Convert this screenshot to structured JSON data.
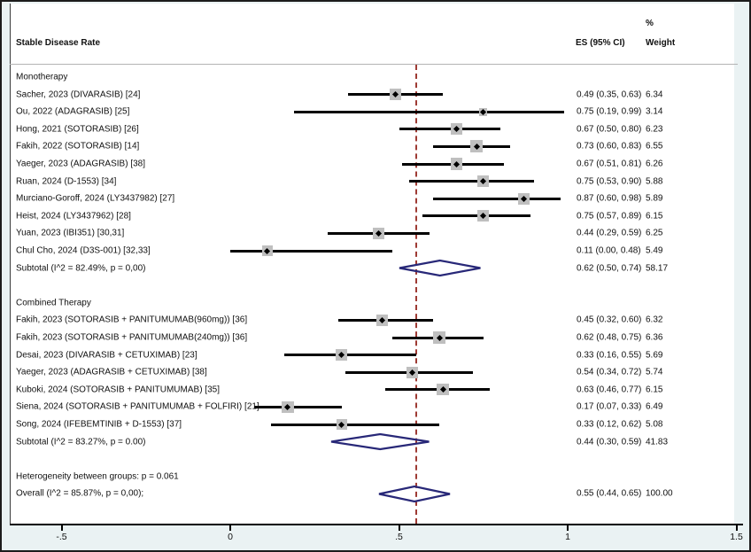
{
  "header": {
    "title": "Stable Disease Rate",
    "es_column": "ES (95% CI)",
    "percent_sign": "%",
    "weight_column": "Weight"
  },
  "axis": {
    "ticks": [
      -0.5,
      0,
      0.5,
      1,
      1.5
    ],
    "tick_labels": [
      "-.5",
      "0",
      ".5",
      "1",
      "1.5"
    ],
    "ref_line_value": 0.55
  },
  "colors": {
    "background": "#eaf2f3",
    "plot_background": "#ffffff",
    "ci_line": "#000000",
    "weight_square": "#bfbfbf",
    "point_marker": "#000000",
    "pooled_diamond": "#282878",
    "reference_line": "#9e3a33",
    "separator_line": "#b3b3b3"
  },
  "chart_data": {
    "type": "forest",
    "title": "Stable Disease Rate",
    "x_ticks": [
      -0.5,
      0,
      0.5,
      1,
      1.5
    ],
    "reference_line": 0.55,
    "rows": [
      {
        "kind": "group",
        "label": "Monotherapy"
      },
      {
        "kind": "study",
        "label": "Sacher, 2023 (DIVARASIB) [24]",
        "es": 0.49,
        "lo": 0.35,
        "hi": 0.63,
        "es_text": "0.49 (0.35, 0.63)",
        "weight": "6.34"
      },
      {
        "kind": "study",
        "label": "Ou, 2022 (ADAGRASIB) [25]",
        "es": 0.75,
        "lo": 0.19,
        "hi": 0.99,
        "es_text": "0.75 (0.19, 0.99)",
        "weight": "3.14"
      },
      {
        "kind": "study",
        "label": "Hong, 2021 (SOTORASIB) [26]",
        "es": 0.67,
        "lo": 0.5,
        "hi": 0.8,
        "es_text": "0.67 (0.50, 0.80)",
        "weight": "6.23"
      },
      {
        "kind": "study",
        "label": "Fakih, 2022 (SOTORASIB) [14]",
        "es": 0.73,
        "lo": 0.6,
        "hi": 0.83,
        "es_text": "0.73 (0.60, 0.83)",
        "weight": "6.55"
      },
      {
        "kind": "study",
        "label": "Yaeger, 2023 (ADAGRASIB) [38]",
        "es": 0.67,
        "lo": 0.51,
        "hi": 0.81,
        "es_text": "0.67 (0.51, 0.81)",
        "weight": "6.26"
      },
      {
        "kind": "study",
        "label": "Ruan, 2024 (D-1553) [34]",
        "es": 0.75,
        "lo": 0.53,
        "hi": 0.9,
        "es_text": "0.75 (0.53, 0.90)",
        "weight": "5.88"
      },
      {
        "kind": "study",
        "label": "Murciano-Goroff, 2024 (LY3437982) [27]",
        "es": 0.87,
        "lo": 0.6,
        "hi": 0.98,
        "es_text": "0.87 (0.60, 0.98)",
        "weight": "5.89"
      },
      {
        "kind": "study",
        "label": "Heist, 2024 (LY3437962) [28]",
        "es": 0.75,
        "lo": 0.57,
        "hi": 0.89,
        "es_text": "0.75 (0.57, 0.89)",
        "weight": "6.15"
      },
      {
        "kind": "study",
        "label": "Yuan, 2023 (IBI351) [30,31]",
        "es": 0.44,
        "lo": 0.29,
        "hi": 0.59,
        "es_text": "0.44 (0.29, 0.59)",
        "weight": "6.25"
      },
      {
        "kind": "study",
        "label": "Chul Cho, 2024 (D3S-001) [32,33]",
        "es": 0.11,
        "lo": 0.0,
        "hi": 0.48,
        "es_text": "0.11 (0.00, 0.48)",
        "weight": "5.49"
      },
      {
        "kind": "subtotal",
        "label": "Subtotal (I^2 = 82.49%, p = 0,00)",
        "es": 0.62,
        "lo": 0.5,
        "hi": 0.74,
        "es_text": "0.62 (0.50, 0.74)",
        "weight": "58.17"
      },
      {
        "kind": "spacer"
      },
      {
        "kind": "group",
        "label": "Combined Therapy"
      },
      {
        "kind": "study",
        "label": "Fakih, 2023 (SOTORASIB + PANITUMUMAB(960mg)) [36]",
        "es": 0.45,
        "lo": 0.32,
        "hi": 0.6,
        "es_text": "0.45 (0.32, 0.60)",
        "weight": "6.32"
      },
      {
        "kind": "study",
        "label": "Fakih, 2023 (SOTORASIB + PANITUMUMAB(240mg)) [36]",
        "es": 0.62,
        "lo": 0.48,
        "hi": 0.75,
        "es_text": "0.62 (0.48, 0.75)",
        "weight": "6.36"
      },
      {
        "kind": "study",
        "label": "Desai, 2023 (DIVARASIB + CETUXIMAB) [23]",
        "es": 0.33,
        "lo": 0.16,
        "hi": 0.55,
        "es_text": "0.33 (0.16, 0.55)",
        "weight": "5.69"
      },
      {
        "kind": "study",
        "label": "Yaeger, 2023 (ADAGRASIB + CETUXIMAB) [38]",
        "es": 0.54,
        "lo": 0.34,
        "hi": 0.72,
        "es_text": "0.54 (0.34, 0.72)",
        "weight": "5.74"
      },
      {
        "kind": "study",
        "label": "Kuboki, 2024 (SOTORASIB + PANITUMUMAB) [35]",
        "es": 0.63,
        "lo": 0.46,
        "hi": 0.77,
        "es_text": "0.63 (0.46, 0.77)",
        "weight": "6.15"
      },
      {
        "kind": "study",
        "label": "Siena, 2024 (SOTORASIB + PANITUMUMAB + FOLFIRI) [21]",
        "es": 0.17,
        "lo": 0.07,
        "hi": 0.33,
        "es_text": "0.17 (0.07, 0.33)",
        "weight": "6.49"
      },
      {
        "kind": "study",
        "label": "Song, 2024 (IFEBEMTINIB + D-1553) [37]",
        "es": 0.33,
        "lo": 0.12,
        "hi": 0.62,
        "es_text": "0.33 (0.12, 0.62)",
        "weight": "5.08"
      },
      {
        "kind": "subtotal",
        "label": "Subtotal (I^2 = 83.27%, p = 0.00)",
        "es": 0.44,
        "lo": 0.3,
        "hi": 0.59,
        "es_text": "0.44 (0.30, 0.59)",
        "weight": "41.83"
      },
      {
        "kind": "spacer"
      },
      {
        "kind": "text",
        "label": "Heterogeneity between groups: p = 0.061"
      },
      {
        "kind": "overall",
        "label": "Overall (I^2 = 85.87%, p = 0,00);",
        "es": 0.55,
        "lo": 0.44,
        "hi": 0.65,
        "es_text": "0.55 (0.44, 0.65)",
        "weight": "100.00"
      }
    ]
  }
}
